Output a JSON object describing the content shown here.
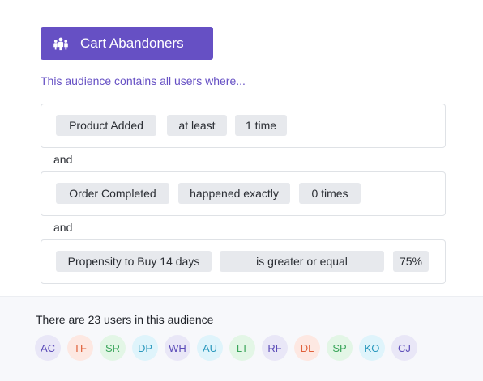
{
  "audience": {
    "name": "Cart Abandoners",
    "icon": "people-group-icon",
    "description": "This audience contains all users where..."
  },
  "conditions": [
    {
      "event": "Product Added",
      "operator": "at least",
      "value": "1 time"
    },
    {
      "event": "Order Completed",
      "operator": "happened exactly",
      "value": "0 times"
    },
    {
      "event": "Propensity to Buy 14 days",
      "operator": "is greater or equal",
      "value": "75%"
    }
  ],
  "joiners": [
    "and",
    "and"
  ],
  "footer": {
    "summary": "There are 23 users in this audience"
  },
  "users": [
    {
      "initials": "AC",
      "bg": "#e9e7f7",
      "fg": "#5b4bb8"
    },
    {
      "initials": "TF",
      "bg": "#fde8e2",
      "fg": "#e0603a"
    },
    {
      "initials": "SR",
      "bg": "#e3f6e6",
      "fg": "#3aa55a"
    },
    {
      "initials": "DP",
      "bg": "#dff4fb",
      "fg": "#2a98bd"
    },
    {
      "initials": "WH",
      "bg": "#e9e7f7",
      "fg": "#5b4bb8"
    },
    {
      "initials": "AU",
      "bg": "#dff4fb",
      "fg": "#2a98bd"
    },
    {
      "initials": "LT",
      "bg": "#e3f6e6",
      "fg": "#3aa55a"
    },
    {
      "initials": "RF",
      "bg": "#e9e7f7",
      "fg": "#5b4bb8"
    },
    {
      "initials": "DL",
      "bg": "#fde8e2",
      "fg": "#e0603a"
    },
    {
      "initials": "SP",
      "bg": "#e3f6e6",
      "fg": "#3aa55a"
    },
    {
      "initials": "KO",
      "bg": "#dff4fb",
      "fg": "#2a98bd"
    },
    {
      "initials": "CJ",
      "bg": "#e9e7f7",
      "fg": "#5b4bb8"
    }
  ],
  "colors": {
    "accent": "#6650c4",
    "chip": "#e7e9ed",
    "border": "#dfe2e6",
    "footer_bg": "#f7f8fb"
  }
}
